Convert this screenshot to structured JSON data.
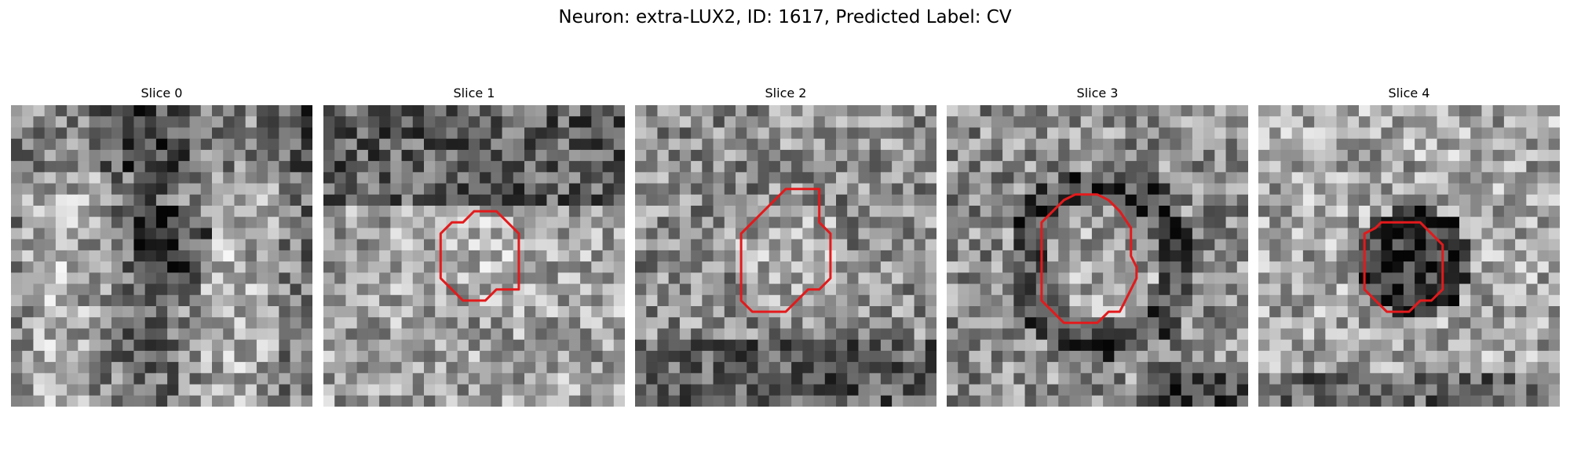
{
  "figure": {
    "title": "Neuron: extra-LUX2, ID: 1617, Predicted Label: CV",
    "roi_color": "#e31a1c"
  },
  "panels": [
    {
      "label": "Slice 0",
      "has_roi": false,
      "roi": []
    },
    {
      "label": "Slice 1",
      "has_roi": true,
      "roi": [
        [
          12.5,
          10.5
        ],
        [
          13.5,
          9.5
        ],
        [
          14.5,
          9.5
        ],
        [
          15.5,
          9.5
        ],
        [
          16.5,
          10.5
        ],
        [
          17.5,
          11.5
        ],
        [
          17.5,
          12.5
        ],
        [
          17.5,
          13.5
        ],
        [
          17.5,
          14.5
        ],
        [
          17.5,
          15.5
        ],
        [
          17.5,
          16.5
        ],
        [
          16.5,
          16.5
        ],
        [
          15.5,
          16.5
        ],
        [
          14.5,
          17.5
        ],
        [
          13.5,
          17.5
        ],
        [
          12.5,
          17.5
        ],
        [
          11.5,
          16.5
        ],
        [
          10.5,
          15.5
        ],
        [
          10.5,
          14.5
        ],
        [
          10.5,
          13.5
        ],
        [
          10.5,
          12.5
        ],
        [
          10.5,
          11.5
        ],
        [
          11.5,
          10.5
        ]
      ]
    },
    {
      "label": "Slice 2",
      "has_roi": true,
      "roi": [
        [
          11.5,
          9.5
        ],
        [
          12.5,
          8.5
        ],
        [
          13.5,
          7.5
        ],
        [
          14.5,
          7.5
        ],
        [
          15.5,
          7.5
        ],
        [
          16.5,
          7.5
        ],
        [
          16.5,
          8.5
        ],
        [
          16.5,
          9.5
        ],
        [
          16.5,
          10.5
        ],
        [
          17.5,
          11.5
        ],
        [
          17.5,
          12.5
        ],
        [
          17.5,
          13.5
        ],
        [
          17.5,
          14.5
        ],
        [
          17.5,
          15.5
        ],
        [
          16.5,
          16.5
        ],
        [
          15.5,
          16.5
        ],
        [
          14.5,
          17.5
        ],
        [
          13.5,
          18.5
        ],
        [
          12.5,
          18.5
        ],
        [
          11.5,
          18.5
        ],
        [
          10.5,
          18.5
        ],
        [
          9.5,
          17.5
        ],
        [
          9.5,
          16.5
        ],
        [
          9.5,
          15.5
        ],
        [
          9.5,
          14.5
        ],
        [
          9.5,
          13.5
        ],
        [
          9.5,
          12.5
        ],
        [
          9.5,
          11.5
        ],
        [
          10.5,
          10.5
        ]
      ]
    },
    {
      "label": "Slice 3",
      "has_roi": true,
      "roi": [
        [
          10.5,
          8.5
        ],
        [
          11.5,
          8.0
        ],
        [
          12.5,
          8.0
        ],
        [
          13.5,
          8.0
        ],
        [
          14.5,
          8.5
        ],
        [
          15.5,
          9.5
        ],
        [
          16.5,
          11.0
        ],
        [
          16.5,
          12.5
        ],
        [
          16.5,
          13.5
        ],
        [
          17.0,
          14.5
        ],
        [
          17.0,
          15.5
        ],
        [
          16.5,
          16.5
        ],
        [
          16.0,
          17.5
        ],
        [
          15.5,
          18.5
        ],
        [
          14.5,
          18.5
        ],
        [
          13.5,
          19.5
        ],
        [
          12.5,
          19.5
        ],
        [
          11.5,
          19.5
        ],
        [
          10.5,
          19.5
        ],
        [
          9.5,
          18.5
        ],
        [
          8.5,
          17.5
        ],
        [
          8.5,
          16.5
        ],
        [
          8.5,
          15.5
        ],
        [
          8.5,
          14.5
        ],
        [
          8.5,
          13.5
        ],
        [
          8.5,
          12.5
        ],
        [
          8.5,
          11.5
        ],
        [
          8.5,
          10.5
        ],
        [
          9.5,
          9.5
        ]
      ]
    },
    {
      "label": "Slice 4",
      "has_roi": true,
      "roi": [
        [
          9.5,
          11.5
        ],
        [
          10.5,
          11.0
        ],
        [
          11.0,
          10.5
        ],
        [
          12.0,
          10.5
        ],
        [
          13.0,
          10.5
        ],
        [
          14.5,
          10.5
        ],
        [
          15.5,
          11.5
        ],
        [
          16.5,
          12.5
        ],
        [
          16.5,
          13.5
        ],
        [
          16.5,
          14.5
        ],
        [
          16.5,
          15.5
        ],
        [
          16.5,
          16.5
        ],
        [
          15.5,
          17.5
        ],
        [
          14.5,
          17.5
        ],
        [
          13.5,
          18.5
        ],
        [
          12.5,
          18.5
        ],
        [
          11.5,
          18.5
        ],
        [
          10.5,
          17.5
        ],
        [
          9.5,
          16.5
        ],
        [
          9.5,
          15.5
        ],
        [
          9.5,
          14.5
        ],
        [
          9.5,
          13.5
        ],
        [
          9.5,
          12.5
        ]
      ]
    }
  ]
}
